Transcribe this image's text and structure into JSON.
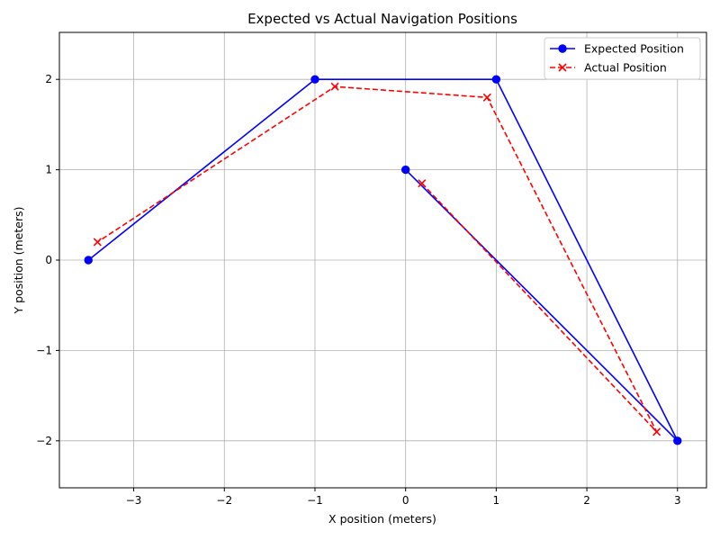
{
  "chart_data": {
    "type": "line",
    "title": "Expected vs Actual Navigation Positions",
    "xlabel": "X position (meters)",
    "ylabel": "Y position (meters)",
    "xlim": [
      -3.82,
      3.32
    ],
    "ylim": [
      -2.52,
      2.52
    ],
    "xticks": [
      -3,
      -2,
      -1,
      0,
      1,
      2,
      3
    ],
    "xtick_labels": [
      "−3",
      "−2",
      "−1",
      "0",
      "1",
      "2",
      "3"
    ],
    "yticks": [
      -2,
      -1,
      0,
      1,
      2
    ],
    "ytick_labels": [
      "−2",
      "−1",
      "0",
      "1",
      "2"
    ],
    "grid": true,
    "legend_position": "top-right",
    "series": [
      {
        "name": "Expected Position",
        "color": "#0000ff",
        "line_style": "solid",
        "marker": "circle",
        "points": [
          {
            "x": 0,
            "y": 1
          },
          {
            "x": 3,
            "y": -2
          },
          {
            "x": 1,
            "y": 2
          },
          {
            "x": -1,
            "y": 2
          },
          {
            "x": -3.5,
            "y": 0
          }
        ]
      },
      {
        "name": "Actual Position",
        "color": "#ff0000",
        "line_style": "dashed",
        "marker": "x",
        "points": [
          {
            "x": 0.18,
            "y": 0.85
          },
          {
            "x": 2.77,
            "y": -1.9
          },
          {
            "x": 0.9,
            "y": 1.8
          },
          {
            "x": -0.78,
            "y": 1.92
          },
          {
            "x": -3.4,
            "y": 0.2
          }
        ]
      }
    ]
  }
}
